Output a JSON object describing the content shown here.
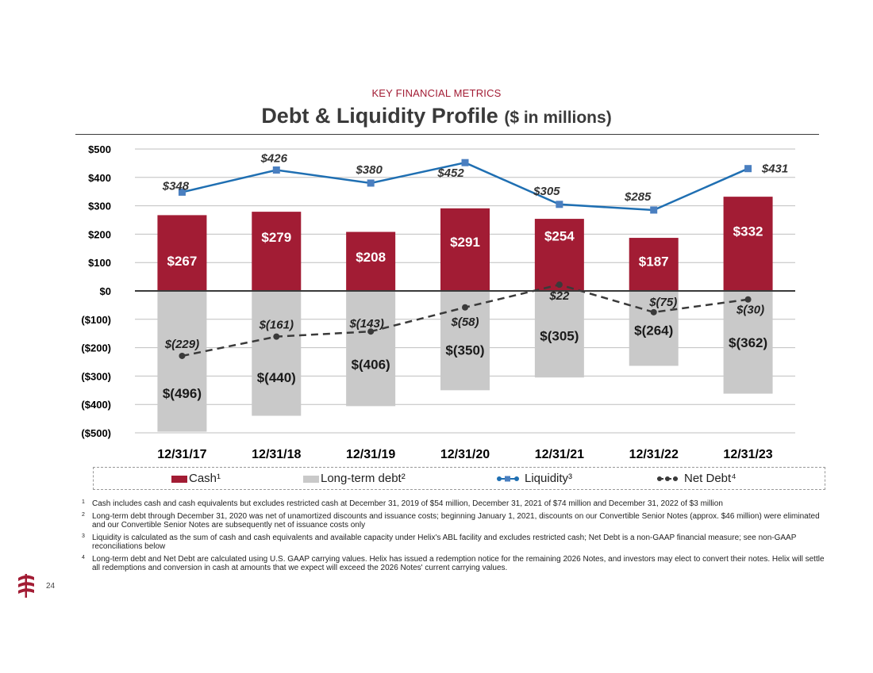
{
  "header": {
    "kicker": "KEY FINANCIAL METRICS",
    "title": "Debt & Liquidity Profile",
    "title_unit": "($ in millions)"
  },
  "chart_data": {
    "type": "bar",
    "categories": [
      "12/31/17",
      "12/31/18",
      "12/31/19",
      "12/31/20",
      "12/31/21",
      "12/31/22",
      "12/31/23"
    ],
    "y_ticks": [
      500,
      400,
      300,
      200,
      100,
      0,
      -100,
      -200,
      -300,
      -400,
      -500
    ],
    "y_tick_labels": [
      "$500",
      "$400",
      "$300",
      "$200",
      "$100",
      "$0",
      "($100)",
      "($200)",
      "($300)",
      "($400)",
      "($500)"
    ],
    "ylim": [
      -500,
      500
    ],
    "series": [
      {
        "name": "Cash¹",
        "kind": "bar",
        "color": "#a21c34",
        "values": [
          267,
          279,
          208,
          291,
          254,
          187,
          332
        ],
        "labels": [
          "$267",
          "$279",
          "$208",
          "$291",
          "$254",
          "$187",
          "$332"
        ]
      },
      {
        "name": "Long-term debt²",
        "kind": "bar",
        "color": "#c9c9c9",
        "values": [
          -496,
          -440,
          -406,
          -350,
          -305,
          -264,
          -362
        ],
        "labels": [
          "$(496)",
          "$(440)",
          "$(406)",
          "$(350)",
          "$(305)",
          "$(264)",
          "$(362)"
        ]
      },
      {
        "name": "Liquidity³",
        "kind": "line",
        "color": "#1f6fb2",
        "marker_color": "#4a7fc0",
        "values": [
          348,
          426,
          380,
          452,
          305,
          285,
          431
        ],
        "labels": [
          "$348",
          "$426",
          "$380",
          "$452",
          "$305",
          "$285",
          "$431"
        ]
      },
      {
        "name": "Net Debt⁴",
        "kind": "line",
        "color": "#3a3a3a",
        "style": "dashed",
        "values": [
          -229,
          -161,
          -143,
          -58,
          22,
          -75,
          -30
        ],
        "labels": [
          "$(229)",
          "$(161)",
          "$(143)",
          "$(58)",
          "$22",
          "$(75)",
          "$(30)"
        ]
      }
    ],
    "legend_position": "bottom"
  },
  "footnotes": [
    {
      "num": "1",
      "text": "Cash includes cash and cash equivalents but excludes restricted cash at December 31, 2019 of $54 million, December 31, 2021 of $74 million and December 31, 2022 of $3 million"
    },
    {
      "num": "2",
      "text": "Long-term debt through December 31, 2020 was net of unamortized discounts and issuance costs; beginning January 1, 2021, discounts on our Convertible Senior Notes (approx. $46 million) were eliminated and our Convertible Senior Notes are subsequently net of issuance costs only"
    },
    {
      "num": "3",
      "text": "Liquidity is calculated as the sum of cash and cash equivalents and available capacity under Helix's ABL facility and excludes restricted cash; Net Debt is a non-GAAP financial measure; see non-GAAP reconciliations below"
    },
    {
      "num": "4",
      "text": "Long-term debt and Net Debt are calculated using U.S. GAAP carrying values.  Helix has issued a redemption notice for the remaining 2026 Notes, and investors may elect to convert their notes.  Helix will settle all redemptions and conversion in cash at amounts that we expect will exceed the 2026 Notes' current carrying values."
    }
  ],
  "page_number": "24"
}
